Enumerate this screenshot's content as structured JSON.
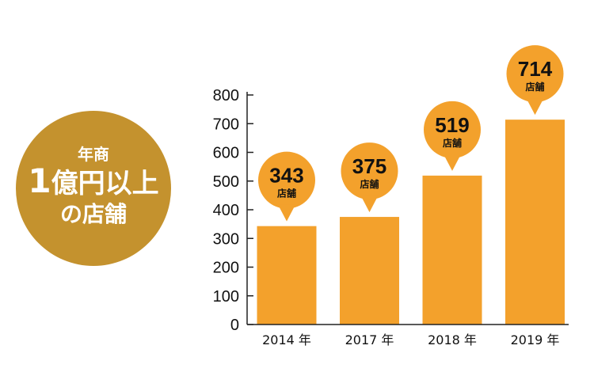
{
  "badge": {
    "line1": "年商",
    "line2_num": "1",
    "line2_rest": "億円以上",
    "line3": "の店舗",
    "color": "#c4922e"
  },
  "chart_data": {
    "type": "bar",
    "categories": [
      "2014 年",
      "2017 年",
      "2018 年",
      "2019 年"
    ],
    "values": [
      343,
      375,
      519,
      714
    ],
    "value_labels": [
      "343",
      "375",
      "519",
      "714"
    ],
    "value_unit": "店舗",
    "ylim": [
      0,
      800
    ],
    "yticks": [
      0,
      100,
      200,
      300,
      400,
      500,
      600,
      700,
      800
    ],
    "title": "",
    "xlabel": "",
    "ylabel": "",
    "grid": false,
    "legend": "none",
    "bar_color": "#f3a12c",
    "callout_color": "#f3a12c"
  }
}
